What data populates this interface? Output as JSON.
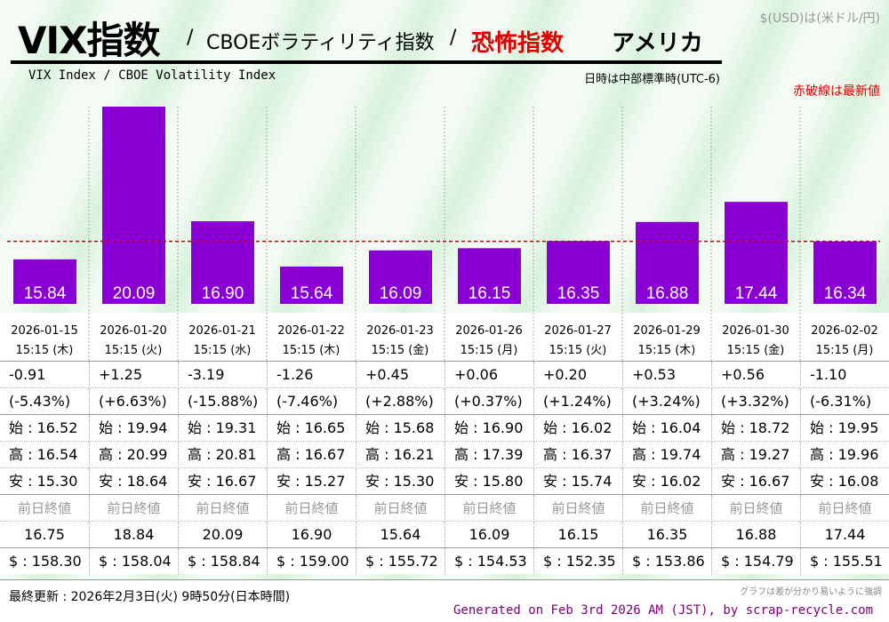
{
  "header": {
    "title": "VIX指数",
    "separator": "/",
    "subtitle": "CBOEボラティリティ指数",
    "fear": "恐怖指数",
    "country": "アメリカ",
    "currency": "$(USD)は(米ドル/円)",
    "subtitle_en": "VIX Index / CBOE Volatility Index",
    "timezone": "日時は中部標準時(UTC-6)",
    "red_note": "赤破線は最新値"
  },
  "colors": {
    "bar": "#8a00d4",
    "latest_line": "#d40000",
    "fear_text": "#e00000",
    "generated_text": "#7a007a"
  },
  "chart_data": {
    "type": "bar",
    "title": "VIX指数",
    "categories": [
      "2026-01-15 15:15 (木)",
      "2026-01-20 15:15 (火)",
      "2026-01-21 15:15 (水)",
      "2026-01-22 15:15 (木)",
      "2026-01-23 15:15 (金)",
      "2026-01-26 15:15 (月)",
      "2026-01-27 15:15 (火)",
      "2026-01-29 15:15 (木)",
      "2026-01-30 15:15 (金)",
      "2026-02-02 15:15 (月)"
    ],
    "dates": [
      "2026-01-15",
      "2026-01-20",
      "2026-01-21",
      "2026-01-22",
      "2026-01-23",
      "2026-01-26",
      "2026-01-27",
      "2026-01-29",
      "2026-01-30",
      "2026-02-02"
    ],
    "times": [
      "15:15 (木)",
      "15:15 (火)",
      "15:15 (水)",
      "15:15 (木)",
      "15:15 (金)",
      "15:15 (月)",
      "15:15 (火)",
      "15:15 (木)",
      "15:15 (金)",
      "15:15 (月)"
    ],
    "values": [
      15.84,
      20.09,
      16.9,
      15.64,
      16.09,
      16.15,
      16.35,
      16.88,
      17.44,
      16.34
    ],
    "value_labels": [
      "15.84",
      "20.09",
      "16.90",
      "15.64",
      "16.09",
      "16.15",
      "16.35",
      "16.88",
      "17.44",
      "16.34"
    ],
    "latest_value": 16.34,
    "ylim": [
      14.6,
      20.09
    ],
    "xlabel": "",
    "ylabel": ""
  },
  "table": {
    "change": [
      "-0.91",
      "+1.25",
      "-3.19",
      "-1.26",
      "+0.45",
      "+0.06",
      "+0.20",
      "+0.53",
      "+0.56",
      "-1.10"
    ],
    "change_pct": [
      "(-5.43%)",
      "(+6.63%)",
      "(-15.88%)",
      "(-7.46%)",
      "(+2.88%)",
      "(+0.37%)",
      "(+1.24%)",
      "(+3.24%)",
      "(+3.32%)",
      "(-6.31%)"
    ],
    "open": [
      "始 : 16.52",
      "始 : 19.94",
      "始 : 19.31",
      "始 : 16.65",
      "始 : 15.68",
      "始 : 16.90",
      "始 : 16.02",
      "始 : 16.04",
      "始 : 18.72",
      "始 : 19.95"
    ],
    "high": [
      "高 : 16.54",
      "高 : 20.99",
      "高 : 20.81",
      "高 : 16.67",
      "高 : 16.21",
      "高 : 17.39",
      "高 : 16.37",
      "高 : 19.74",
      "高 : 19.27",
      "高 : 19.96"
    ],
    "low": [
      "安 : 15.30",
      "安 : 18.64",
      "安 : 16.67",
      "安 : 15.27",
      "安 : 15.30",
      "安 : 15.80",
      "安 : 15.74",
      "安 : 16.02",
      "安 : 16.67",
      "安 : 16.08"
    ],
    "prev_label": "前日終値",
    "prev_close": [
      "16.75",
      "18.84",
      "20.09",
      "16.90",
      "15.64",
      "16.09",
      "16.15",
      "16.35",
      "16.88",
      "17.44"
    ],
    "usdjpy": [
      "$ : 158.30",
      "$ : 158.04",
      "$ : 158.84",
      "$ : 159.00",
      "$ : 155.72",
      "$ : 154.53",
      "$ : 152.35",
      "$ : 153.86",
      "$ : 154.79",
      "$ : 155.51"
    ]
  },
  "footer": {
    "updated": "最終更新 : 2026年2月3日(火) 9時50分(日本時間)",
    "note": "グラフは差が分かり易いように強調",
    "generated": "Generated on Feb 3rd 2026 AM (JST), by scrap-recycle.com"
  }
}
